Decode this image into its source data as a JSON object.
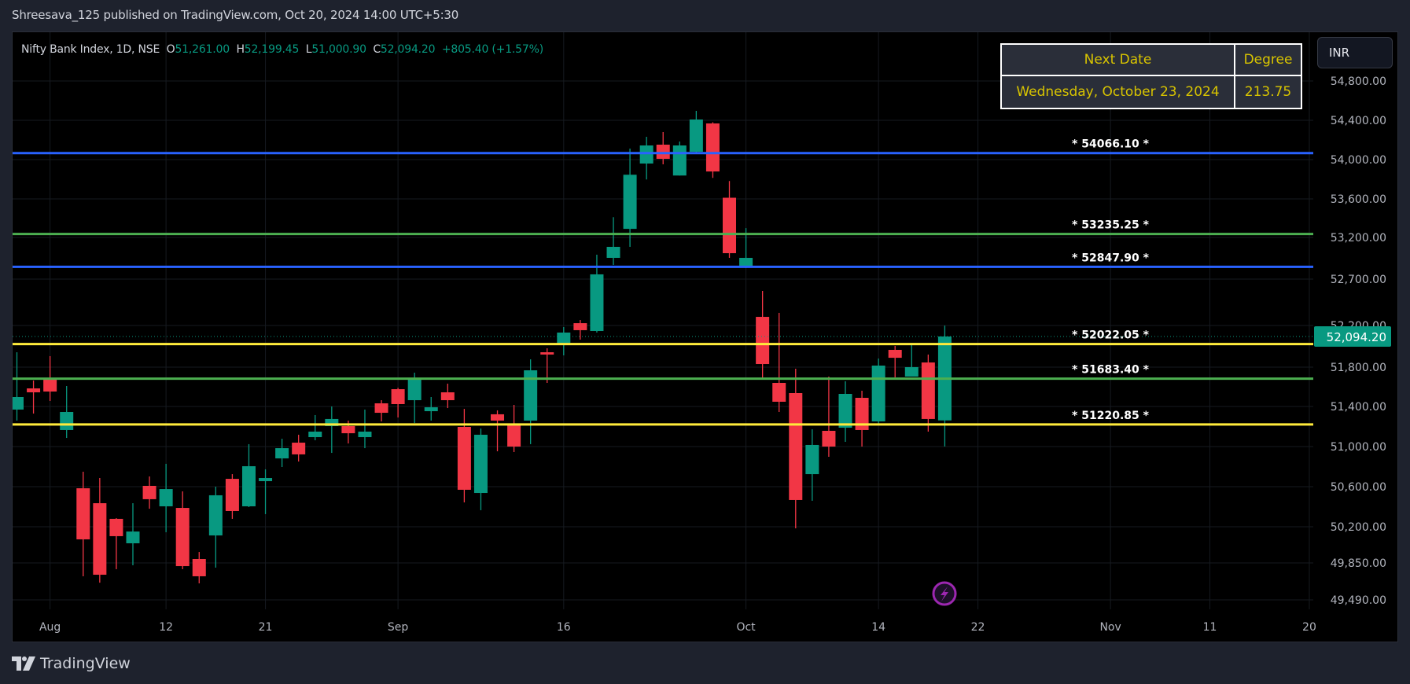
{
  "header": {
    "published": "Shreesava_125 published on TradingView.com, Oct 20, 2024 14:00 UTC+5:30"
  },
  "legend": {
    "symbol": "Nifty Bank Index, 1D, NSE",
    "o_label": "O",
    "o": "51,261.00",
    "h_label": "H",
    "h": "52,199.45",
    "l_label": "L",
    "l": "51,000.90",
    "c_label": "C",
    "c": "52,094.20",
    "change": "+805.40 (+1.57%)"
  },
  "info_table": {
    "col1_header": "Next Date",
    "col2_header": "Degree",
    "col1_value": "Wednesday, October 23, 2024",
    "col2_value": "213.75"
  },
  "currency_button": "INR",
  "footer": {
    "brand": "TradingView"
  },
  "colors": {
    "up": "#089981",
    "down": "#f23645",
    "blue_level": "#2962ff",
    "green_level": "#4caf50",
    "yellow_level": "#ffeb3b",
    "table_text": "#d8c400",
    "alert_icon": "#9c27b0"
  },
  "icons": {
    "alert": "lightning-bolt-icon",
    "logo": "tradingview-logo-icon"
  },
  "chart_data": {
    "type": "candlestick",
    "scale": "price",
    "ylim": [
      49490,
      54800
    ],
    "grid": true,
    "y_ticks": [
      "54,800.00",
      "54,400.00",
      "54,000.00",
      "53,600.00",
      "53,200.00",
      "52,700.00",
      "52,200.00",
      "51,800.00",
      "51,400.00",
      "51,000.00",
      "50,600.00",
      "50,200.00",
      "49,850.00",
      "49,490.00"
    ],
    "y_tick_values": [
      54800,
      54400,
      54000,
      53600,
      53200,
      52700,
      52200,
      51800,
      51400,
      51000,
      50600,
      50200,
      49850,
      49490
    ],
    "x_ticks": [
      {
        "label": "Aug",
        "bar": 2
      },
      {
        "label": "12",
        "bar": 9
      },
      {
        "label": "21",
        "bar": 15
      },
      {
        "label": "Sep",
        "bar": 23
      },
      {
        "label": "16",
        "bar": 33
      },
      {
        "label": "Oct",
        "bar": 44
      },
      {
        "label": "14",
        "bar": 52
      },
      {
        "label": "22",
        "bar": 58
      },
      {
        "label": "Nov",
        "bar": 66
      },
      {
        "label": "11",
        "bar": 72
      },
      {
        "label": "20",
        "bar": 78
      }
    ],
    "last_price": {
      "value": 52094.2,
      "label": "52,094.20"
    },
    "levels": [
      {
        "value": 54066.1,
        "label": "* 54066.10 *",
        "color": "#2962ff"
      },
      {
        "value": 53235.25,
        "label": "* 53235.25 *",
        "color": "#4caf50"
      },
      {
        "value": 52847.9,
        "label": "* 52847.90 *",
        "color": "#2962ff"
      },
      {
        "value": 52022.05,
        "label": "* 52022.05 *",
        "color": "#ffeb3b"
      },
      {
        "value": 51683.4,
        "label": "* 51683.40 *",
        "color": "#4caf50"
      },
      {
        "value": 51220.85,
        "label": "* 51220.85 *",
        "color": "#ffeb3b"
      }
    ],
    "ohlc": [
      [
        51369,
        51943,
        51259,
        51496
      ],
      [
        51584,
        51664,
        51329,
        51544
      ],
      [
        51672,
        51906,
        51456,
        51552
      ],
      [
        51165,
        51608,
        51086,
        51345
      ],
      [
        50584,
        50749,
        49720,
        50078
      ],
      [
        50435,
        50686,
        49658,
        49735
      ],
      [
        50279,
        50286,
        49789,
        50109
      ],
      [
        50040,
        50435,
        49827,
        50154
      ],
      [
        50608,
        50702,
        50380,
        50475
      ],
      [
        50404,
        50828,
        50147,
        50576
      ],
      [
        50388,
        50553,
        49789,
        49819
      ],
      [
        49888,
        49956,
        49651,
        49720
      ],
      [
        50116,
        50600,
        49804,
        50514
      ],
      [
        50678,
        50725,
        50279,
        50357
      ],
      [
        50404,
        51024,
        50396,
        50804
      ],
      [
        50655,
        50773,
        50326,
        50686
      ],
      [
        50882,
        51078,
        50796,
        50984
      ],
      [
        51039,
        51118,
        50851,
        50922
      ],
      [
        51094,
        51314,
        51063,
        51149
      ],
      [
        51204,
        51400,
        50937,
        51275
      ],
      [
        51204,
        51259,
        51031,
        51133
      ],
      [
        51094,
        51369,
        50984,
        51149
      ],
      [
        51432,
        51464,
        51251,
        51337
      ],
      [
        51576,
        51590,
        51290,
        51424
      ],
      [
        51464,
        51744,
        51235,
        51688
      ],
      [
        51353,
        51496,
        51259,
        51392
      ],
      [
        51544,
        51632,
        51384,
        51464
      ],
      [
        51196,
        51376,
        50443,
        50569
      ],
      [
        50537,
        51180,
        50365,
        51118
      ],
      [
        51322,
        51361,
        50953,
        51259
      ],
      [
        51212,
        51416,
        50945,
        51000
      ],
      [
        51259,
        51875,
        51024,
        51768
      ],
      [
        51943,
        51981,
        51640,
        51921
      ],
      [
        52019,
        52185,
        51913,
        52132
      ],
      [
        52225,
        52259,
        52064,
        52155
      ],
      [
        52147,
        52993,
        52132,
        52757
      ],
      [
        52955,
        53410,
        52870,
        53087
      ],
      [
        53289,
        54112,
        53087,
        53846
      ],
      [
        53960,
        54232,
        53798,
        54144
      ],
      [
        54152,
        54280,
        53952,
        54008
      ],
      [
        53838,
        54184,
        53838,
        54144
      ],
      [
        54080,
        54496,
        54056,
        54408
      ],
      [
        54368,
        54380,
        53814,
        53879
      ],
      [
        53612,
        53782,
        52955,
        53011
      ],
      [
        52851,
        53297,
        52832,
        52955
      ],
      [
        52293,
        52573,
        51680,
        51830
      ],
      [
        51640,
        52336,
        51345,
        51448
      ],
      [
        51536,
        51784,
        50185,
        50467
      ],
      [
        50725,
        51172,
        50459,
        51016
      ],
      [
        51157,
        51704,
        50898,
        51000
      ],
      [
        51188,
        51656,
        51047,
        51528
      ],
      [
        51488,
        51560,
        51000,
        51165
      ],
      [
        51251,
        51883,
        51220,
        51815
      ],
      [
        51966,
        52004,
        51696,
        51890
      ],
      [
        51704,
        52019,
        51704,
        51800
      ],
      [
        51845,
        51921,
        51149,
        51275
      ],
      [
        51261,
        52199.45,
        51000.9,
        52094.2
      ]
    ]
  }
}
